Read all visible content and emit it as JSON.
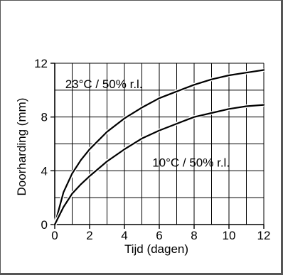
{
  "chart_data": {
    "type": "line",
    "xlabel": "Tijd (dagen)",
    "ylabel": "Doorharding (mm)",
    "xlim": [
      0,
      12
    ],
    "ylim": [
      0,
      12
    ],
    "x_ticks": [
      0,
      2,
      4,
      6,
      8,
      10,
      12
    ],
    "y_ticks": [
      0,
      4,
      8,
      12
    ],
    "grid": true,
    "series": [
      {
        "name": "23°C / 50% r.l.",
        "x": [
          0,
          0.5,
          1,
          1.5,
          2,
          3,
          4,
          5,
          6,
          7,
          8,
          9,
          10,
          11,
          12
        ],
        "y": [
          0,
          2.4,
          3.8,
          4.8,
          5.6,
          6.9,
          7.9,
          8.7,
          9.4,
          9.9,
          10.4,
          10.8,
          11.1,
          11.3,
          11.5
        ],
        "color": "#000000"
      },
      {
        "name": "10°C / 50% r.l.",
        "x": [
          0,
          0.5,
          1,
          1.5,
          2,
          3,
          4,
          5,
          6,
          7,
          8,
          9,
          10,
          11,
          12
        ],
        "y": [
          0,
          1.3,
          2.3,
          3.0,
          3.6,
          4.7,
          5.6,
          6.4,
          7.0,
          7.5,
          8.0,
          8.3,
          8.6,
          8.8,
          8.9
        ],
        "color": "#000000"
      }
    ]
  }
}
